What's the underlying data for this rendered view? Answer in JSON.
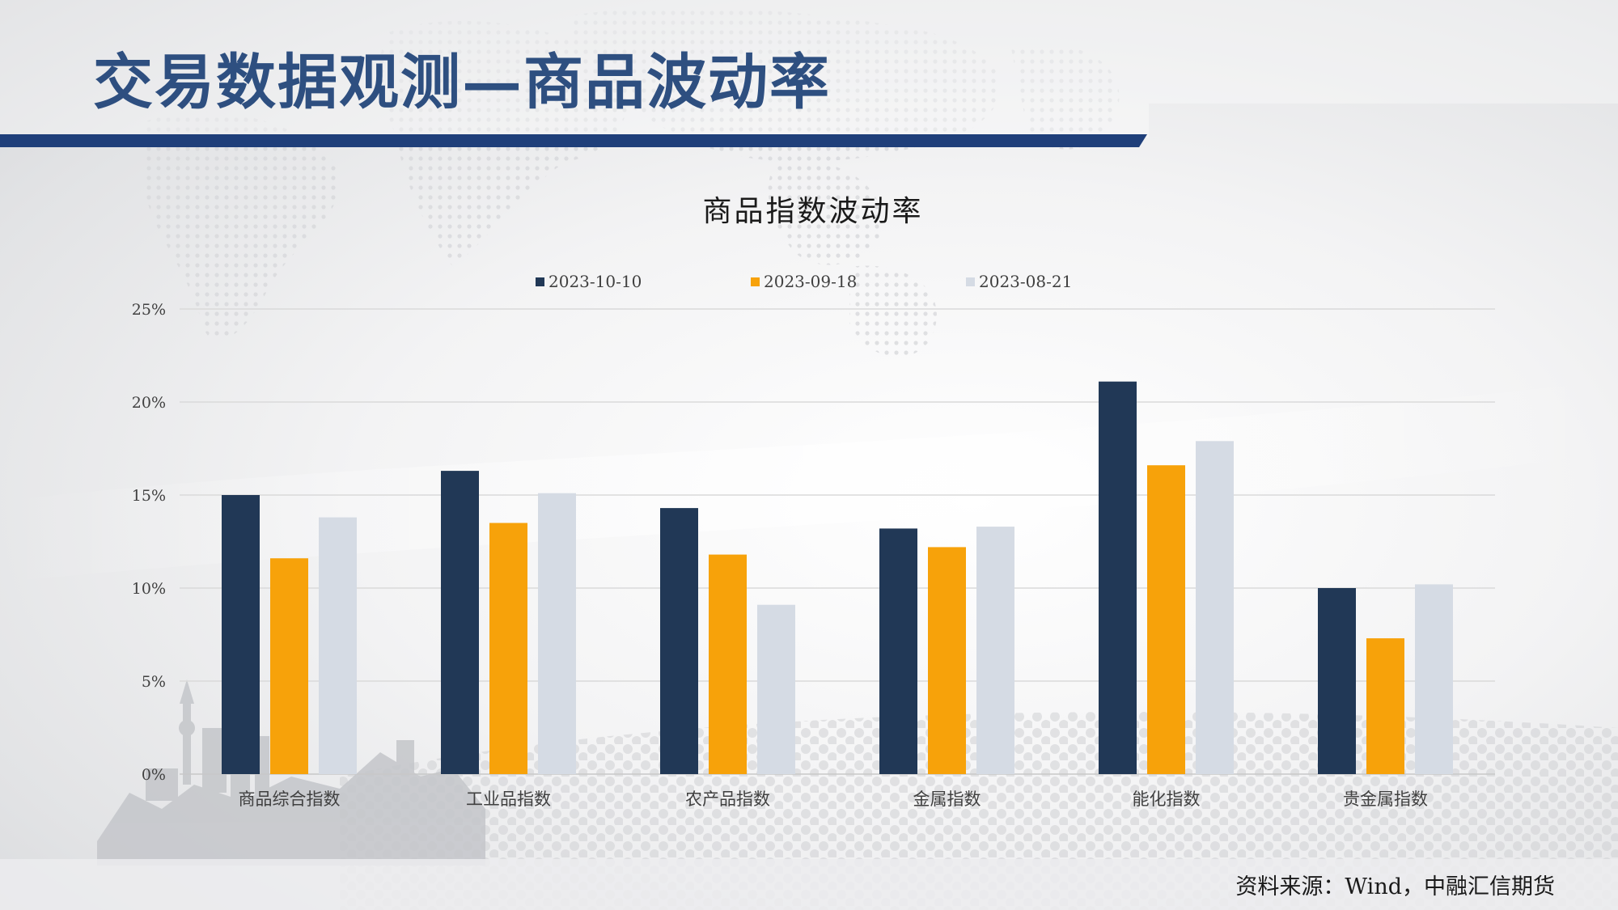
{
  "header": {
    "title": "交易数据观测—商品波动率",
    "accent_color": "#1f3f7a"
  },
  "source_note": "资料来源：Wind，中融汇信期货",
  "chart_data": {
    "type": "bar",
    "title": "商品指数波动率",
    "categories": [
      "商品综合指数",
      "工业品指数",
      "农产品指数",
      "金属指数",
      "能化指数",
      "贵金属指数"
    ],
    "series": [
      {
        "name": "2023-10-10",
        "color": "#213856",
        "values": [
          15.0,
          16.3,
          14.3,
          13.2,
          21.1,
          10.0
        ]
      },
      {
        "name": "2023-09-18",
        "color": "#f7a20a",
        "values": [
          11.6,
          13.5,
          11.8,
          12.2,
          16.6,
          7.3
        ]
      },
      {
        "name": "2023-08-21",
        "color": "#d5dbe4",
        "values": [
          13.8,
          15.1,
          9.1,
          13.3,
          17.9,
          10.2
        ]
      }
    ],
    "ylim": [
      0,
      25
    ],
    "yticks": [
      "0%",
      "5%",
      "10%",
      "15%",
      "20%",
      "25%"
    ],
    "ytick_values": [
      0,
      5,
      10,
      15,
      20,
      25
    ],
    "grid": true,
    "legend_position": "top"
  }
}
